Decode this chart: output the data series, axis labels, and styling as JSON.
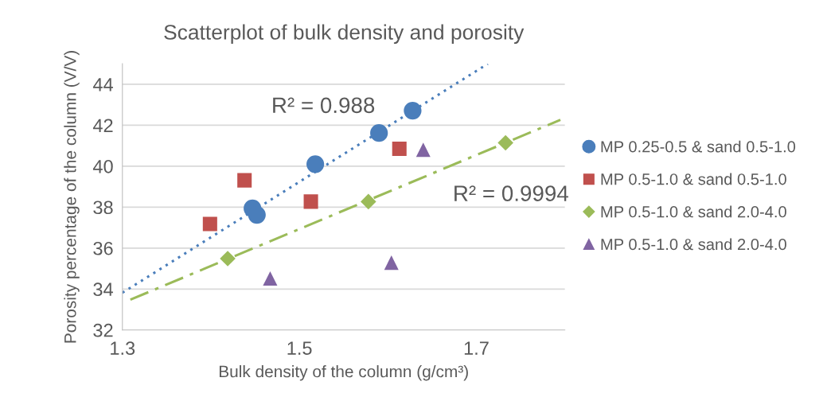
{
  "chart_data": {
    "type": "scatter",
    "title": "Scatterplot of bulk density and porosity",
    "xlabel": "Bulk density of the column (g/cm³)",
    "ylabel": "Porosity percentage of the column (V/V)",
    "xlim": [
      1.3,
      1.8
    ],
    "xticks": [
      1.3,
      1.5,
      1.7
    ],
    "ylim": [
      32,
      45
    ],
    "yticks": [
      32,
      34,
      36,
      38,
      40,
      42,
      44
    ],
    "grid": "y",
    "legend": "right",
    "series": [
      {
        "name": "MP 0.25-0.5 & sand 0.5-1.0",
        "color": "#4a7ebb",
        "marker": "circle",
        "x": [
          1.628,
          1.59,
          1.518,
          1.447,
          1.452
        ],
        "values": [
          42.71,
          41.62,
          40.1,
          37.94,
          37.62
        ]
      },
      {
        "name": "MP 0.5-1.0 & sand 0.5-1.0",
        "color": "#c0504d",
        "marker": "square",
        "x": [
          1.399,
          1.438,
          1.513,
          1.613
        ],
        "values": [
          37.18,
          39.31,
          38.27,
          40.85
        ]
      },
      {
        "name": "MP 0.5-1.0 & sand 2.0-4.0",
        "color": "#9bbb59",
        "marker": "diamond",
        "x": [
          1.419,
          1.578,
          1.733
        ],
        "values": [
          35.49,
          38.27,
          41.14
        ]
      },
      {
        "name": "MP 0.5-1.0 & sand 2.0-4.0",
        "color": "#8064a2",
        "marker": "triangle",
        "x": [
          1.467,
          1.604,
          1.64
        ],
        "values": [
          34.52,
          35.29,
          40.8
        ]
      },
      {
        "type": "line",
        "color": "#4a7ebb",
        "line_style": "dotted",
        "x": [
          1.3,
          1.713
        ],
        "values": [
          33.82,
          45.0
        ]
      },
      {
        "type": "line",
        "color": "#9bbb59",
        "line_style": "dashed",
        "x": [
          1.309,
          1.795
        ],
        "values": [
          33.48,
          42.26
        ]
      }
    ],
    "annotations": [
      "R² = 0.988",
      "R² = 0.9994"
    ]
  }
}
